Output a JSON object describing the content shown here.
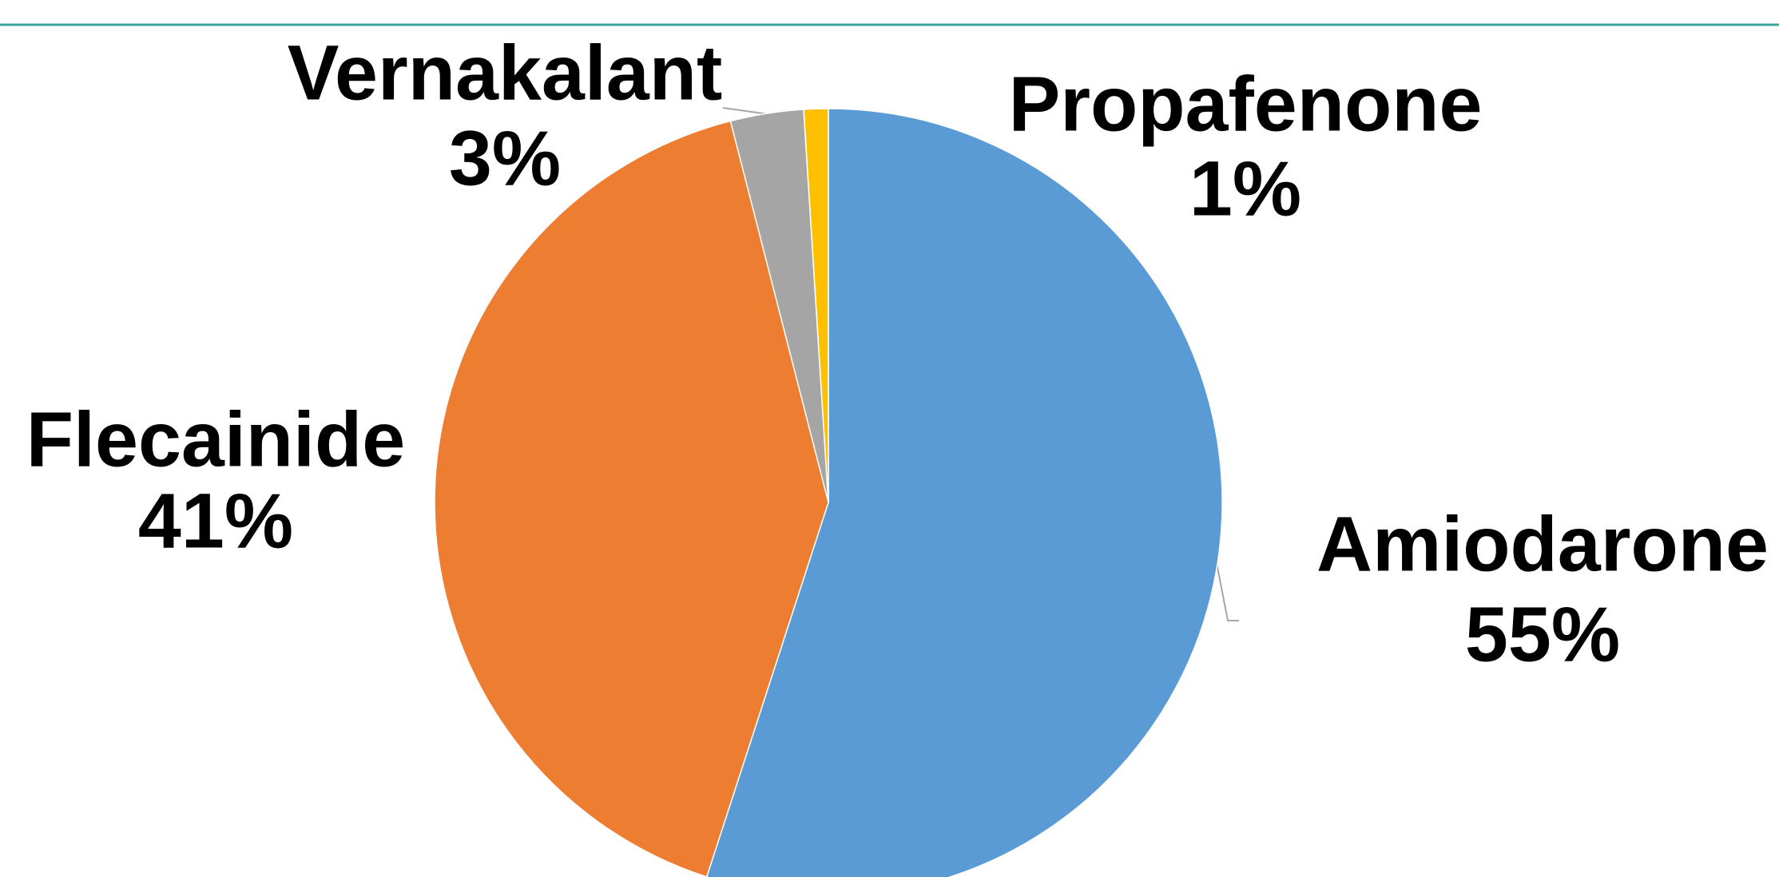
{
  "chart_data": {
    "type": "pie",
    "categories": [
      "Amiodarone",
      "Flecainide",
      "Vernakalant",
      "Propafenone"
    ],
    "values": [
      55,
      41,
      3,
      1
    ],
    "value_labels": [
      "55%",
      "41%",
      "3%",
      "1%"
    ],
    "colors": [
      "#5b9bd5",
      "#ed7d31",
      "#a5a5a5",
      "#ffc000"
    ]
  }
}
